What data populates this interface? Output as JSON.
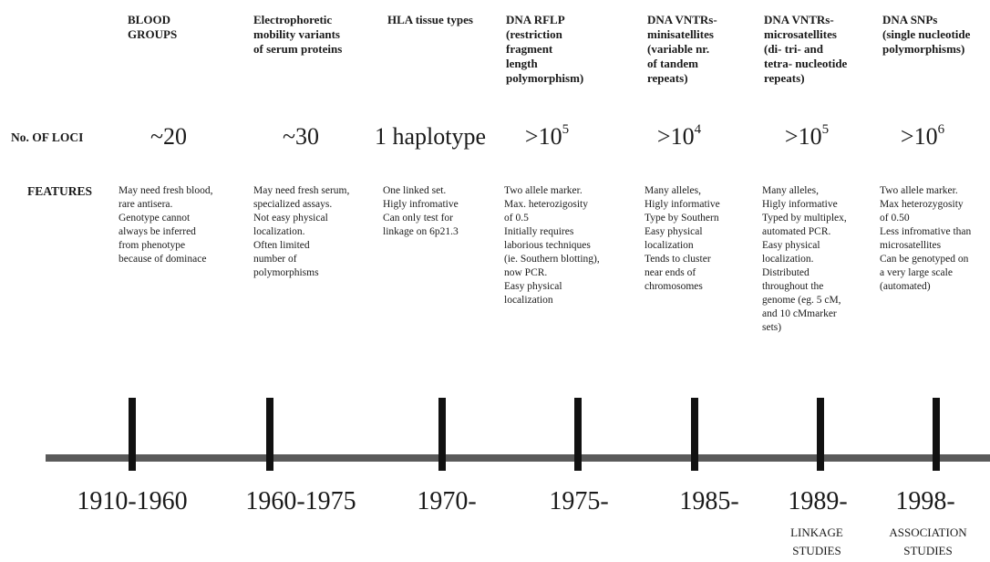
{
  "row_labels": {
    "loci": "No. OF LOCI",
    "features": "FEATURES"
  },
  "columns": [
    {
      "header": [
        "BLOOD",
        "GROUPS"
      ],
      "loci": "~20",
      "features": [
        "May need fresh blood,",
        "rare antisera.",
        "Genotype cannot",
        "always be  inferred",
        "from phenotype",
        "because of dominace"
      ],
      "period": "1910-1960"
    },
    {
      "header": [
        "Electrophoretic",
        "mobility variants",
        "of serum proteins"
      ],
      "loci": "~30",
      "features": [
        "May need fresh serum,",
        "specialized assays.",
        "Not easy physical",
        "localization.",
        "Often limited",
        "number of",
        "polymorphisms"
      ],
      "period": "1960-1975"
    },
    {
      "header": [
        "HLA tissue types"
      ],
      "loci": "1 haplotype",
      "features": [
        "One linked set.",
        "Higly infromative",
        "Can only test for",
        "linkage on 6p21.3"
      ],
      "period": "1970-"
    },
    {
      "header": [
        "DNA RFLP",
        "(restriction",
        "fragment",
        "length",
        "polymorphism)"
      ],
      "loci": ">10",
      "loci_exponent": "5",
      "features": [
        "Two allele marker.",
        "Max. heterozigosity",
        "of 0.5",
        "Initially requires",
        "laborious techniques",
        "(ie. Southern blotting),",
        "now PCR.",
        "Easy physical",
        "localization"
      ],
      "period": "1975-"
    },
    {
      "header": [
        "DNA VNTRs-",
        "minisatellites",
        "(variable nr.",
        "of tandem",
        "repeats)"
      ],
      "loci": ">10",
      "loci_exponent": "4",
      "features": [
        "Many alleles,",
        "Higly informative",
        "Type by Southern",
        "Easy physical",
        "localization",
        "Tends to cluster",
        "near ends of",
        "chromosomes"
      ],
      "period": "1985-"
    },
    {
      "header": [
        "DNA VNTRs-",
        "microsatellites",
        "(di- tri- and",
        "tetra- nucleotide",
        "repeats)"
      ],
      "loci": ">10",
      "loci_exponent": "5",
      "features": [
        "Many alleles,",
        "Higly informative",
        "Typed by multiplex,",
        "automated PCR.",
        "Easy physical",
        "localization.",
        "Distributed",
        "throughout the",
        "genome (eg. 5 cM,",
        "and 10 cMmarker",
        "sets)"
      ],
      "period": "1989-",
      "note": [
        "LINKAGE",
        "STUDIES"
      ]
    },
    {
      "header": [
        "DNA SNPs",
        "(single nucleotide",
        "polymorphisms)"
      ],
      "loci": ">10",
      "loci_exponent": "6",
      "features": [
        "Two allele marker.",
        "Max heterozygosity",
        "of 0.50",
        "Less infromative than",
        "microsatellites",
        "Can be genotyped on",
        "a very large scale",
        "(automated)"
      ],
      "period": "1998-",
      "note": [
        "ASSOCIATION",
        "STUDIES"
      ]
    }
  ]
}
